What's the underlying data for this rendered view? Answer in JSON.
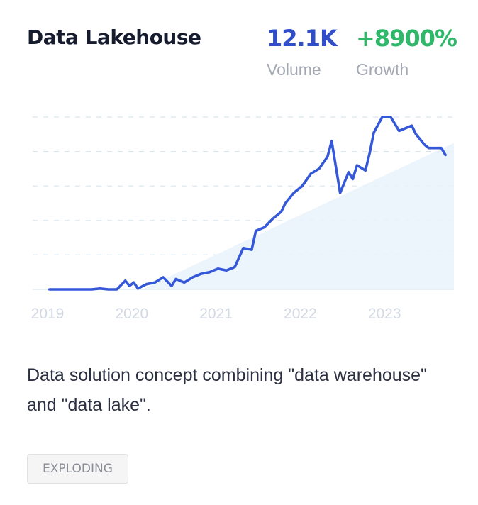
{
  "card": {
    "title": "Data Lakehouse",
    "volume": {
      "value": "12.1K",
      "label": "Volume"
    },
    "growth": {
      "value": "+8900%",
      "label": "Growth"
    },
    "description": "Data solution concept combining \"data warehouse\" and \"data lake\".",
    "status": "EXPLODING"
  },
  "colors": {
    "volume": "#2f4ec8",
    "growth": "#2fb86a",
    "line": "#3558d8",
    "grid": "#d6e6ef",
    "trend_fill": "#eaf3fc",
    "tick": "#d3d9e4"
  },
  "chart_data": {
    "type": "line",
    "title": "",
    "xlabel": "",
    "ylabel": "",
    "x_ticks": [
      "2019",
      "2020",
      "2021",
      "2022",
      "2023"
    ],
    "xlim": [
      2019.0,
      2024.0
    ],
    "ylim": [
      0,
      100
    ],
    "grid": true,
    "series": [
      {
        "x": [
          2019.2,
          2019.4,
          2019.6,
          2019.7,
          2019.8,
          2019.9,
          2020.0,
          2020.1,
          2020.15,
          2020.2,
          2020.25,
          2020.35,
          2020.45,
          2020.55,
          2020.65,
          2020.7,
          2020.8,
          2020.9,
          2021.0,
          2021.1,
          2021.2,
          2021.3,
          2021.4,
          2021.5,
          2021.6,
          2021.65,
          2021.75,
          2021.85,
          2021.95,
          2022.0,
          2022.1,
          2022.2,
          2022.3,
          2022.4,
          2022.5,
          2022.55,
          2022.65,
          2022.75,
          2022.8,
          2022.85,
          2022.95,
          2023.0,
          2023.05,
          2023.15,
          2023.25,
          2023.3,
          2023.35,
          2023.45,
          2023.5,
          2023.55,
          2023.65,
          2023.7,
          2023.85,
          2023.9
        ],
        "y": [
          0,
          0,
          0,
          0,
          0.5,
          0,
          0,
          5,
          2,
          4,
          0.5,
          3,
          4,
          7,
          2,
          6,
          4,
          7,
          9,
          10,
          12,
          11,
          13,
          24,
          23,
          34,
          36,
          41,
          45,
          50,
          56,
          60,
          67,
          70,
          77,
          86,
          56,
          68,
          64,
          72,
          69,
          79,
          91,
          100,
          100,
          96,
          92,
          94,
          95,
          90,
          84,
          82,
          82,
          78
        ]
      }
    ],
    "trend": {
      "x": [
        2020.3,
        2024.0
      ],
      "y": [
        0,
        85
      ]
    }
  }
}
